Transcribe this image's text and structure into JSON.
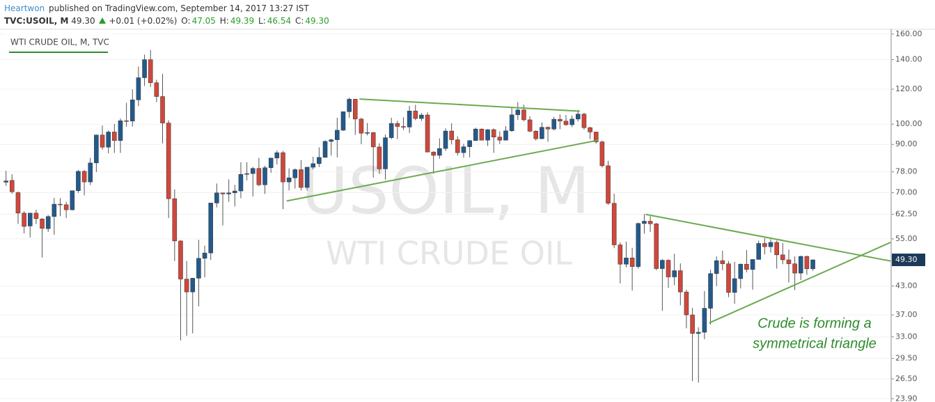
{
  "header": {
    "author": "Heartwon",
    "published": "published on TradingView.com, September 14, 2017 13:27 IST",
    "symbol": "TVC:USOIL, M",
    "price": "49.30",
    "change": "+0.01 (+0.02%)",
    "ohlc": [
      {
        "label": "O:",
        "value": "47.05"
      },
      {
        "label": "H:",
        "value": "49.39"
      },
      {
        "label": "L:",
        "value": "46.54"
      },
      {
        "label": "C:",
        "value": "49.30"
      }
    ]
  },
  "chart_data": {
    "type": "candlestick",
    "title": "WTI CRUDE OIL, M, TVC",
    "watermark": [
      "USOIL, M",
      "WTI CRUDE OIL"
    ],
    "annotation": [
      "Crude is forming a",
      "symmetrical triangle"
    ],
    "log_scale": true,
    "ylim": [
      23.5,
      164
    ],
    "xlim": [
      -1,
      147
    ],
    "yticks": [
      {
        "value": 160,
        "label": "160.00"
      },
      {
        "value": 140,
        "label": "140.00"
      },
      {
        "value": 120,
        "label": "120.00"
      },
      {
        "value": 100,
        "label": "100.00"
      },
      {
        "value": 90,
        "label": "90.00"
      },
      {
        "value": 78,
        "label": "78.00"
      },
      {
        "value": 70,
        "label": "70.00"
      },
      {
        "value": 62.5,
        "label": "62.50"
      },
      {
        "value": 55,
        "label": "55.00"
      },
      {
        "value": 43,
        "label": "43.00"
      },
      {
        "value": 37,
        "label": "37.00"
      },
      {
        "value": 33,
        "label": "33.00"
      },
      {
        "value": 29.5,
        "label": "29.50"
      },
      {
        "value": 26.5,
        "label": "26.50"
      },
      {
        "value": 23.9,
        "label": "23.90"
      }
    ],
    "last_price": {
      "value": 49.3,
      "label": "49.30"
    },
    "grid": true,
    "up_color": "#235a8c",
    "down_color": "#d0473b",
    "wick_color": "#555555",
    "open": [
      73.9,
      74.6,
      70.0,
      62.9,
      58.8,
      62.9,
      61.0,
      58.0,
      61.8,
      65.9,
      65.7,
      64.0,
      70.7,
      78.2,
      74.0,
      81.7,
      94.5,
      88.7,
      96.0,
      91.8,
      101.8,
      101.6,
      113.5,
      127.4,
      140.0,
      124.1,
      115.5,
      100.6,
      67.8,
      54.4,
      44.6,
      41.7,
      44.8,
      49.7,
      51.1,
      66.3,
      69.9,
      69.5,
      69.9,
      70.6,
      77.0,
      77.3,
      79.4,
      72.9,
      79.7,
      83.8,
      86.2,
      74.0,
      75.6,
      78.9,
      71.9,
      79.9,
      81.4,
      84.1,
      91.4,
      92.2,
      96.9,
      106.7,
      113.9,
      102.7,
      95.4,
      95.7,
      88.8,
      79.2,
      93.2,
      100.4,
      98.8,
      98.5,
      107.1,
      103.0,
      104.9,
      86.5,
      85.0,
      88.1,
      96.5,
      92.2,
      86.2,
      88.9,
      91.8,
      97.5,
      92.0,
      97.2,
      93.5,
      92.0,
      96.6,
      105.0,
      107.7,
      102.3,
      96.4,
      92.7,
      98.4,
      97.5,
      102.6,
      101.6,
      99.7,
      102.7,
      105.4,
      98.2,
      96.0,
      91.2,
      80.5,
      66.2,
      53.3,
      48.2,
      49.8,
      47.6,
      59.6,
      60.3,
      59.5,
      47.1,
      49.2,
      45.1,
      46.6,
      41.7,
      37.0,
      33.6,
      33.8,
      38.3,
      45.9,
      49.1,
      48.3,
      41.6,
      44.7,
      48.2,
      46.9,
      49.4,
      53.7,
      52.8,
      54.0,
      50.6,
      49.3,
      48.3,
      46.0,
      50.2,
      47.05
    ],
    "high": [
      78.4,
      77.0,
      70.4,
      63.5,
      63.0,
      64.0,
      61.3,
      62.3,
      68.1,
      68.0,
      66.7,
      70.7,
      78.8,
      78.8,
      83.9,
      94.7,
      99.3,
      96.8,
      100.1,
      103.0,
      111.8,
      119.9,
      135.1,
      143.7,
      147.3,
      126.1,
      130.0,
      102.0,
      71.2,
      54.6,
      49.0,
      44.9,
      54.7,
      53.1,
      66.3,
      73.4,
      70.0,
      75.0,
      72.9,
      82.0,
      82.0,
      80.0,
      83.9,
      80.5,
      83.9,
      87.2,
      87.0,
      79.4,
      79.4,
      82.9,
      80.0,
      84.4,
      88.6,
      92.0,
      92.6,
      103.4,
      106.9,
      114.8,
      114.1,
      103.4,
      100.6,
      96.0,
      90.5,
      94.7,
      103.4,
      101.8,
      103.7,
      110.0,
      110.6,
      106.0,
      106.4,
      86.8,
      92.9,
      97.9,
      100.4,
      93.9,
      90.3,
      92.0,
      98.2,
      97.8,
      97.4,
      97.8,
      96.3,
      99.0,
      109.3,
      112.2,
      110.7,
      104.3,
      96.9,
      100.8,
      98.8,
      103.9,
      105.2,
      104.9,
      104.6,
      107.7,
      106.1,
      98.7,
      96.0,
      91.8,
      82.6,
      69.6,
      54.0,
      54.2,
      52.5,
      59.9,
      62.6,
      61.9,
      59.8,
      49.5,
      49.5,
      50.9,
      48.4,
      42.2,
      38.4,
      34.7,
      41.9,
      46.8,
      50.2,
      51.7,
      49.0,
      48.8,
      48.4,
      51.9,
      49.5,
      54.5,
      55.2,
      54.9,
      54.5,
      53.8,
      52.0,
      50.2,
      50.4,
      50.4,
      49.39
    ],
    "low": [
      72.5,
      69.6,
      59.5,
      56.6,
      55.4,
      59.4,
      49.9,
      57.0,
      56.2,
      61.9,
      61.3,
      63.8,
      69.9,
      69.0,
      72.8,
      77.9,
      87.6,
      85.9,
      86.1,
      86.1,
      98.7,
      98.7,
      109.9,
      122.0,
      121.4,
      112.2,
      90.5,
      61.3,
      49.0,
      32.4,
      33.2,
      33.6,
      38.7,
      45.0,
      49.3,
      64.8,
      59.0,
      66.7,
      65.1,
      68.0,
      74.6,
      68.6,
      72.4,
      69.5,
      77.6,
      81.0,
      64.2,
      70.8,
      71.5,
      70.8,
      70.8,
      79.0,
      80.0,
      84.0,
      84.9,
      84.1,
      96.5,
      103.4,
      94.6,
      90.1,
      94.3,
      75.7,
      77.1,
      74.9,
      92.5,
      92.5,
      97.0,
      95.5,
      102.1,
      101.7,
      86.3,
      77.3,
      83.5,
      87.0,
      90.0,
      84.9,
      84.0,
      84.1,
      91.7,
      91.9,
      89.3,
      86.1,
      90.2,
      92.0,
      96.0,
      102.2,
      101.5,
      95.9,
      91.8,
      92.5,
      91.2,
      96.7,
      97.4,
      99.2,
      98.5,
      101.4,
      97.2,
      92.5,
      90.4,
      79.8,
      65.7,
      52.4,
      43.6,
      47.4,
      42.0,
      47.1,
      56.5,
      57.0,
      46.7,
      37.8,
      42.6,
      43.2,
      38.9,
      34.5,
      26.2,
      26.0,
      32.6,
      35.2,
      43.0,
      46.7,
      40.6,
      39.2,
      42.5,
      46.2,
      42.2,
      49.4,
      50.7,
      51.2,
      47.1,
      48.2,
      43.8,
      42.1,
      44.4,
      45.6,
      46.54
    ],
    "close": [
      74.4,
      70.3,
      62.9,
      58.7,
      62.9,
      61.1,
      58.1,
      61.8,
      65.9,
      65.7,
      64.0,
      70.7,
      78.2,
      74.0,
      81.7,
      94.5,
      88.7,
      96.0,
      91.8,
      101.8,
      101.6,
      113.5,
      127.4,
      140.0,
      124.1,
      115.5,
      100.6,
      67.8,
      54.4,
      44.6,
      41.7,
      44.8,
      49.7,
      51.1,
      66.3,
      69.9,
      69.5,
      69.9,
      70.6,
      77.0,
      77.3,
      79.4,
      72.9,
      79.7,
      83.8,
      86.2,
      74.0,
      75.6,
      78.9,
      71.9,
      79.9,
      81.4,
      84.1,
      91.4,
      92.2,
      96.9,
      106.7,
      113.9,
      102.7,
      95.4,
      95.7,
      88.8,
      79.2,
      93.2,
      100.4,
      98.8,
      98.5,
      107.1,
      103.0,
      104.9,
      86.5,
      85.0,
      88.1,
      96.5,
      92.2,
      86.2,
      88.9,
      91.8,
      97.5,
      92.0,
      97.2,
      93.5,
      92.0,
      96.6,
      105.0,
      107.7,
      102.3,
      96.4,
      92.7,
      98.4,
      97.5,
      102.6,
      101.6,
      99.7,
      102.7,
      105.4,
      98.2,
      96.0,
      91.2,
      80.5,
      66.2,
      53.3,
      48.2,
      49.8,
      47.6,
      59.6,
      60.3,
      59.5,
      47.1,
      49.2,
      45.1,
      46.6,
      41.7,
      37.0,
      33.6,
      33.8,
      38.3,
      45.9,
      49.1,
      48.3,
      41.6,
      44.7,
      48.2,
      46.9,
      49.4,
      53.7,
      52.8,
      54.0,
      50.6,
      49.3,
      48.3,
      46.0,
      50.2,
      47.05,
      49.3
    ],
    "trendline_color": "#6aab4f",
    "trendlines": [
      {
        "x": [
          58.7,
          95.3
        ],
        "y": [
          114,
          107
        ]
      },
      {
        "x": [
          46.6,
          98.4
        ],
        "y": [
          67,
          92
        ]
      },
      {
        "x": [
          106.2,
          146.9
        ],
        "y": [
          62.5,
          49
        ]
      },
      {
        "x": [
          116.8,
          146.9
        ],
        "y": [
          35.5,
          54
        ]
      }
    ]
  }
}
